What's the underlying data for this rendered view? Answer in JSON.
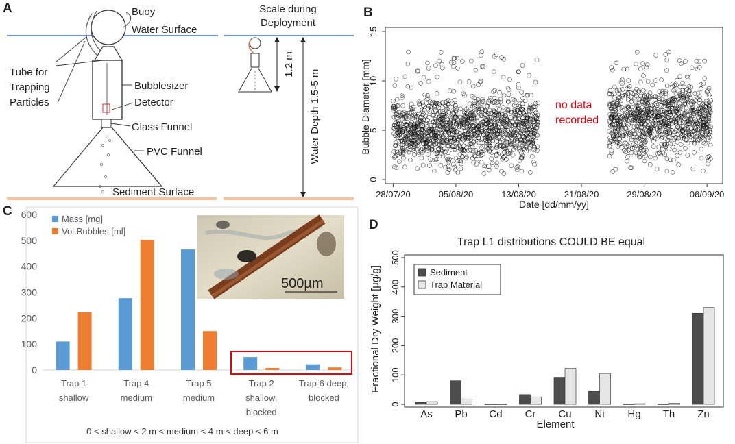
{
  "panels": {
    "a": {
      "letter": "A",
      "labels": {
        "buoy": "Buoy",
        "water_surface": "Water Surface",
        "tube_line1": "Tube for",
        "tube_line2": "Trapping",
        "tube_line3": "Particles",
        "bubblesizer": "Bubblesizer",
        "detector": "Detector",
        "glass_funnel": "Glass Funnel",
        "pvc_funnel": "PVC Funnel",
        "sediment_surface": "Sediment Surface",
        "scale_line1": "Scale during",
        "scale_line2": "Deployment",
        "height": "1.2 m",
        "water_depth": "Water Depth 1.5-5 m"
      }
    },
    "b": {
      "letter": "B",
      "annotation_line1": "no data",
      "annotation_line2": "recorded",
      "annotation_color": "#e8000b",
      "chart_data": {
        "type": "scatter",
        "title": "",
        "xlabel": "Date [dd/mm/yy]",
        "ylabel": "Bubble Diameter [mm]",
        "x_ticks": [
          "28/07/20",
          "05/08/20",
          "13/08/20",
          "21/08/20",
          "29/08/20",
          "06/09/20"
        ],
        "y_ticks": [
          "0",
          "5",
          "10",
          "15"
        ],
        "ylim": [
          0,
          15
        ],
        "xlim_days_from_28_07_20": [
          -1,
          42
        ],
        "segments": [
          {
            "start_day": 0,
            "end_day": 3.7,
            "y_median": 5,
            "y_max": 13,
            "y_min": 1
          },
          {
            "start_day": 3.7,
            "end_day": 18.5,
            "y_median": 5,
            "y_max": 13,
            "y_min": 0.6
          },
          {
            "start_day": 27.5,
            "end_day": 40.5,
            "y_median": 6,
            "y_max": 13,
            "y_min": 0.6
          }
        ],
        "gap_days": [
          18.5,
          27.5
        ]
      }
    },
    "c": {
      "letter": "C",
      "inset_scale_label": "500µm",
      "caption": "0 < shallow < 2 m < medium < 4 m < deep < 6 m",
      "highlight_color": "#e8000b",
      "chart_data": {
        "type": "bar",
        "categories": [
          [
            "Trap 1",
            "shallow"
          ],
          [
            "Trap 4",
            "medium"
          ],
          [
            "Trap 5",
            "medium"
          ],
          [
            "Trap 2",
            "shallow,",
            "blocked"
          ],
          [
            "Trap 6 deep,",
            "blocked"
          ]
        ],
        "series": [
          {
            "name": "Mass [mg]",
            "color": "#5b9bd5",
            "values": [
              110,
              277,
              465,
              50,
              22
            ]
          },
          {
            "name": "Vol.Bubbles [ml]",
            "color": "#ed7d31",
            "values": [
              222,
              502,
              150,
              8,
              10
            ]
          }
        ],
        "y_ticks": [
          "0",
          "100",
          "200",
          "300",
          "400",
          "500",
          "600"
        ],
        "ylim": [
          0,
          600
        ],
        "legend_position": "top-left"
      }
    },
    "d": {
      "letter": "D",
      "chart_data": {
        "type": "bar",
        "title": "Trap L1 distributions COULD BE equal",
        "xlabel": "Element",
        "ylabel": "Fractional Dry Weight [µg/g]",
        "categories": [
          "As",
          "Pb",
          "Cd",
          "Cr",
          "Cu",
          "Ni",
          "Hg",
          "Th",
          "Zn"
        ],
        "series": [
          {
            "name": "Sediment",
            "color": "#4d4d4d",
            "values": [
              7,
              80,
              1,
              33,
              92,
              45,
              1,
              1,
              310
            ]
          },
          {
            "name": "Trap Material",
            "color": "#e6e6e6",
            "values": [
              9,
              18,
              1,
              25,
              122,
              105,
              2,
              3,
              330
            ]
          }
        ],
        "y_ticks": [
          "0",
          "100",
          "200",
          "300",
          "400",
          "500"
        ],
        "ylim": [
          0,
          500
        ],
        "legend_position": "top-left"
      }
    }
  }
}
